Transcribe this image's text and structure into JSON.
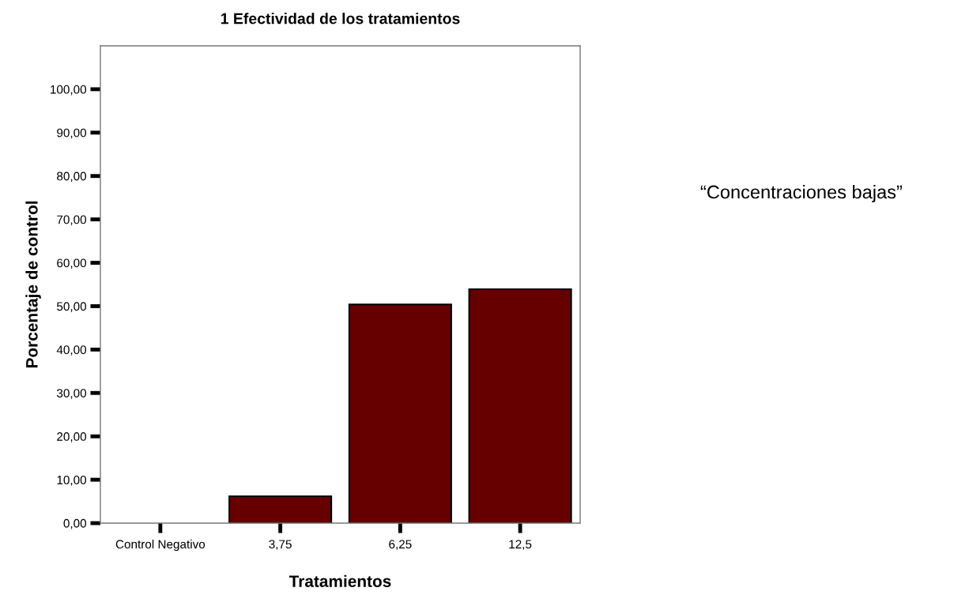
{
  "chart_data": {
    "type": "bar",
    "title": "1 Efectividad de los tratamientos",
    "xlabel": "Tratamientos",
    "ylabel": "Porcentaje de control",
    "categories": [
      "Control Negativo",
      "3,75",
      "6,25",
      "12,5"
    ],
    "values": [
      0,
      6.2,
      50.4,
      53.9
    ],
    "color": "#660000",
    "ylim": [
      0,
      110
    ],
    "yticks": [
      {
        "value": 0,
        "label": "0,00"
      },
      {
        "value": 10,
        "label": "10,00"
      },
      {
        "value": 20,
        "label": "20,00"
      },
      {
        "value": 30,
        "label": "30,00"
      },
      {
        "value": 40,
        "label": "40,00"
      },
      {
        "value": 50,
        "label": "50,00"
      },
      {
        "value": 60,
        "label": "60,00"
      },
      {
        "value": 70,
        "label": "70,00"
      },
      {
        "value": 80,
        "label": "80,00"
      },
      {
        "value": 90,
        "label": "90,00"
      },
      {
        "value": 100,
        "label": "100,00"
      }
    ],
    "annotations": [
      "“Concentraciones bajas”"
    ],
    "grid": false,
    "legend": false
  }
}
